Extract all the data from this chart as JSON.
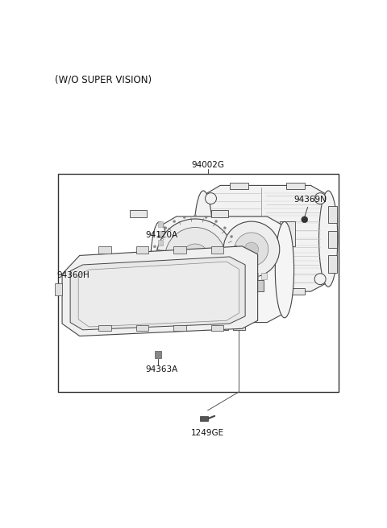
{
  "title": "(W/O SUPER VISION)",
  "bg_color": "#ffffff",
  "lc": "#444444",
  "fig_width": 4.8,
  "fig_height": 6.56,
  "dpi": 100,
  "labels": {
    "main": "94002G",
    "cluster": "94120A",
    "bezel": "94360H",
    "screw_bottom": "94363A",
    "pcb": "94369N",
    "screw_bottom2": "1249GE"
  }
}
